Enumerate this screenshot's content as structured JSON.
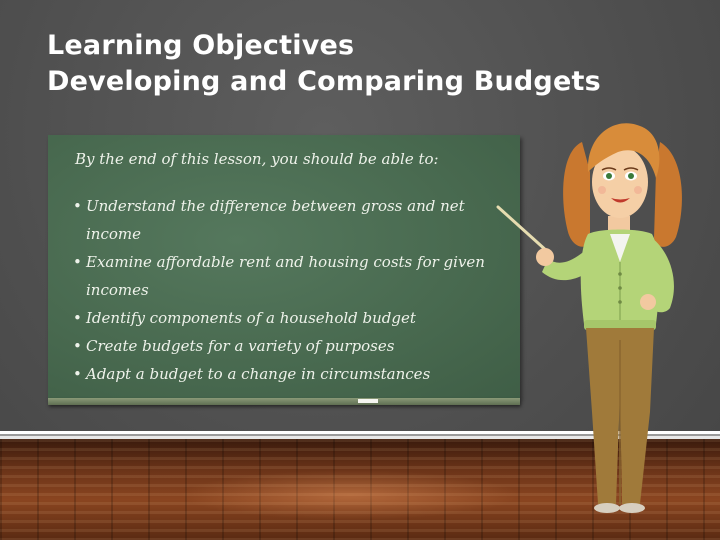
{
  "slide": {
    "title_line1": "Learning Objectives",
    "title_line2": "Developing and Comparing Budgets"
  },
  "board": {
    "intro": "By the end of this lesson, you should be able to:",
    "bullet_glyph": "•",
    "objectives": [
      "Understand the difference between gross and net income",
      "Examine affordable rent and housing costs for given incomes",
      "Identify components of a household budget",
      "Create budgets for a variety of purposes",
      "Adapt a budget to a change in circumstances"
    ]
  },
  "colors": {
    "background": "#4f4f4f",
    "chalkboard": "#4a6b51",
    "chalk_text": "#eef2ea",
    "title_text": "#ffffff",
    "floor": "#7a3d1c"
  }
}
